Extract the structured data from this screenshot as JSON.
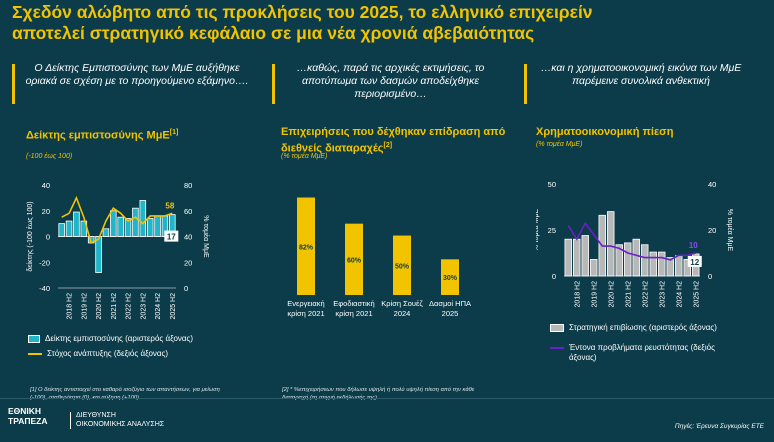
{
  "title_lines": [
    "Σχεδόν αλώβητο από τις προκλήσεις του 2025, το ελληνικό επιχειρείν",
    "αποτελεί στρατηγικό κεφάλαιο σε μια νέα χρονιά αβεβαιότητας"
  ],
  "columns": [
    {
      "heading": "Ο Δείκτης Εμπιστοσύνης των ΜμΕ αυξήθηκε οριακά σε σχέση με το προηγούμενο εξάμηνο…."
    },
    {
      "heading": "…καθώς, παρά τις αρχικές εκτιμήσεις, το αποτύπωμα των δασμών αποδείχθηκε περιορισμένο…"
    },
    {
      "heading": "…και η χρηματοοικονομική εικόνα των ΜμΕ παρέμεινε συνολικά ανθεκτική"
    }
  ],
  "chart_data": [
    {
      "type": "bar",
      "title": "Δείκτης εμπιστοσύνης ΜμΕ",
      "footnote_marker": "[1]",
      "subtitle": "(-100 έως 100)",
      "left_axis_label": "δείκτης (-100 έως 100)",
      "right_axis_label": "% τομέα ΜμΕ",
      "left_ylim": [
        -40,
        40
      ],
      "left_ticks": [
        "40",
        "20",
        "0",
        "-20",
        "-40"
      ],
      "right_ylim": [
        0,
        80
      ],
      "right_ticks": [
        "80",
        "60",
        "40",
        "20",
        "0"
      ],
      "x_tick_labels": [
        "2018 H2",
        "2019 H2",
        "2020 H2",
        "2021 H2",
        "2022 H2",
        "2023 H2",
        "2024 H2",
        "2025 H2"
      ],
      "categories": [
        "2018 H1",
        "2018 H2",
        "2019 H1",
        "2019 H2",
        "2020 H1",
        "2020 H2",
        "2021 H1",
        "2021 H2",
        "2022 H1",
        "2022 H2",
        "2023 H1",
        "2023 H2",
        "2024 H1",
        "2024 H2",
        "2025 H1",
        "2025 H2"
      ],
      "series": [
        {
          "name": "Δείκτης εμπιστοσύνης (αριστερός άξονας)",
          "axis": "left",
          "kind": "bar",
          "values": [
            10,
            12,
            19,
            12,
            -5,
            -28,
            6,
            20,
            15,
            14,
            22,
            28,
            14,
            16,
            16,
            17
          ]
        },
        {
          "name": "Στόχος ανάπτυξης (δεξιός άξονας)",
          "axis": "right",
          "kind": "line",
          "values": [
            55,
            58,
            70,
            55,
            35,
            38,
            52,
            62,
            58,
            52,
            55,
            50,
            56,
            56,
            56,
            58
          ]
        }
      ],
      "end_labels": {
        "line": "58",
        "bar": "17"
      }
    },
    {
      "type": "bar",
      "title": "Επιχειρήσεις που δέχθηκαν επίδραση από διεθνείς διαταραχές",
      "footnote_marker": "[2]",
      "subtitle": "(% τομέα ΜμΕ)",
      "categories": [
        [
          "Ενεργειακή",
          "κρίση 2021"
        ],
        [
          "Εφοδιαστική",
          "κρίση 2021"
        ],
        [
          "Κρίση Σουέζ",
          "2024"
        ],
        [
          "Δασμοί ΗΠΑ",
          "2025"
        ]
      ],
      "values": [
        82,
        60,
        50,
        30
      ],
      "data_labels": [
        "82%",
        "60%",
        "50%",
        "30%"
      ],
      "ylim": [
        0,
        90
      ]
    },
    {
      "type": "bar",
      "title": "Χρηματοοικονομική πίεση",
      "subtitle": "(% τομέα ΜμΕ)",
      "left_axis_label": "% τομέα ΜμΕ",
      "right_axis_label": "% τομέα ΜμΕ",
      "left_ylim": [
        0,
        50
      ],
      "left_ticks": [
        "50",
        "25",
        "0"
      ],
      "right_ylim": [
        0,
        40
      ],
      "right_ticks": [
        "40",
        "20",
        "0"
      ],
      "x_tick_labels": [
        "2018 H2",
        "2019 H2",
        "2020 H2",
        "2021 H2",
        "2022 H2",
        "2023 H2",
        "2024 H2",
        "2025 H2"
      ],
      "categories": [
        "2018 H1",
        "2018 H2",
        "2019 H1",
        "2019 H2",
        "2020 H1",
        "2020 H2",
        "2021 H1",
        "2021 H2",
        "2022 H1",
        "2022 H2",
        "2023 H1",
        "2023 H2",
        "2024 H1",
        "2024 H2",
        "2025 H1",
        "2025 H2"
      ],
      "series": [
        {
          "name": "Στρατηγική επιβίωσης (αριστερός άξονας)",
          "axis": "left",
          "kind": "bar",
          "values": [
            20,
            20,
            22,
            9,
            33,
            35,
            17,
            18,
            20,
            17,
            13,
            13,
            10,
            11,
            9,
            12
          ]
        },
        {
          "name": "Έντονα προβλήματα ρευστότητας (δεξιός άξονας)",
          "axis": "right",
          "kind": "line",
          "values": [
            22,
            16,
            23,
            18,
            13,
            13,
            12,
            10,
            9,
            8,
            8,
            8,
            7,
            9,
            9,
            10
          ]
        }
      ],
      "end_labels": {
        "line": "10",
        "bar": "12"
      }
    }
  ],
  "colors": {
    "background": "#0c3b4a",
    "accent": "#f2c400",
    "bar_teal": "#1fb6c9",
    "bar_gray": "#b8b8b8",
    "line_purple": "#6a1fc9"
  },
  "footnotes": {
    "f1": "[1] Ο δείκτης αντιστοιχεί στο καθαρό ισοζύγιο των απαντήσεων, για μείωση (-100), σταθερότητα (0), και αύξηση (+100).",
    "f2": "[2] * %επιχειρήσεων που δήλωσε υψηλή ή πολύ υψηλή πίεση από την κάθε διαταραχή (τη στιγμή εκδήλωσής της)"
  },
  "footer": {
    "logo_line1": "ΕΘΝΙΚΗ",
    "logo_line2": "ΤΡΑΠΕΖΑ",
    "dept_line1": "ΔΙΕΥΘΥΝΣΗ",
    "dept_line2": "ΟΙΚΟΝΟΜΙΚΗΣ ΑΝΑΛΥΣΗΣ",
    "source": "Πηγές: Έρευνα Συγκυρίας ΕΤΕ"
  }
}
